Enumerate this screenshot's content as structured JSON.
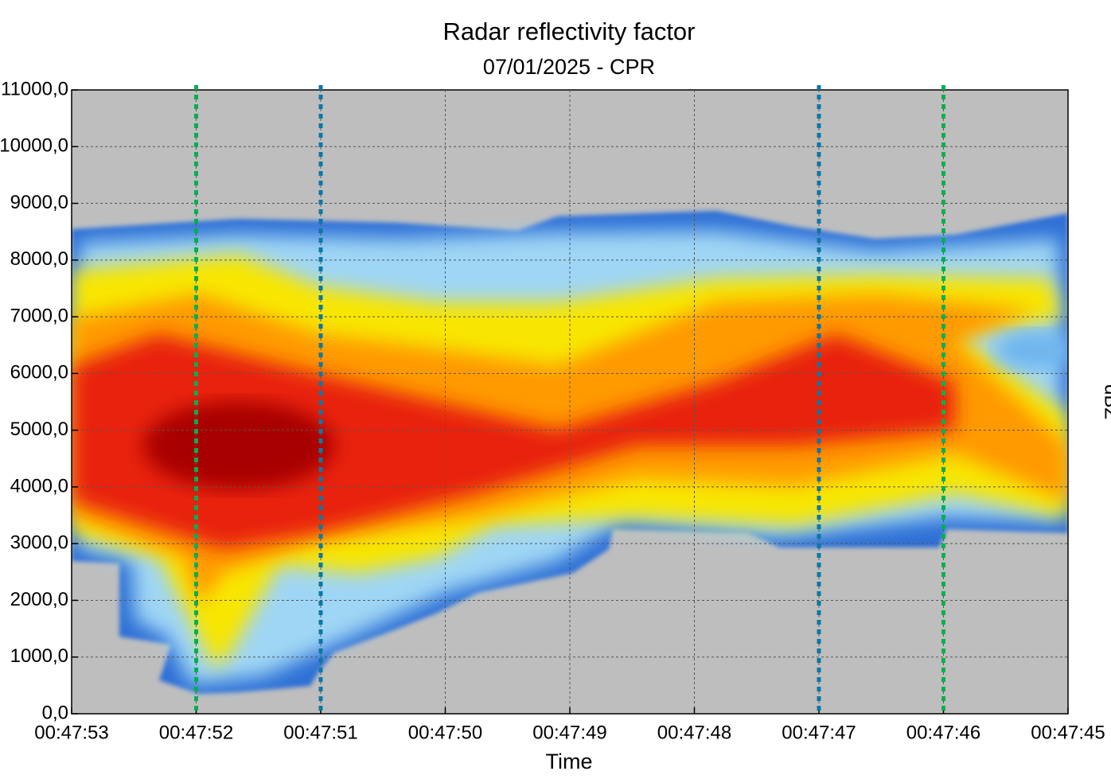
{
  "chart_data": {
    "type": "heatmap",
    "title": "Radar reflectivity factor",
    "subtitle": "07/01/2025 - CPR",
    "xlabel": "Time",
    "colorbar_label": "dBZ",
    "categories": [
      "00:47:53",
      "00:47:52",
      "00:47:51",
      "00:47:50",
      "00:47:49",
      "00:47:48",
      "00:47:47",
      "00:47:46",
      "00:47:45"
    ],
    "ylim": [
      0,
      11000
    ],
    "yticks": [
      {
        "value": 0,
        "label": "0,0"
      },
      {
        "value": 1000,
        "label": "1000,0"
      },
      {
        "value": 2000,
        "label": "2000,0"
      },
      {
        "value": 3000,
        "label": "3000,0"
      },
      {
        "value": 4000,
        "label": "4000,0"
      },
      {
        "value": 5000,
        "label": "5000,0"
      },
      {
        "value": 6000,
        "label": "6000,0"
      },
      {
        "value": 7000,
        "label": "7000,0"
      },
      {
        "value": 8000,
        "label": "8000,0"
      },
      {
        "value": 9000,
        "label": "9000,0"
      },
      {
        "value": 10000,
        "label": "10000,0"
      },
      {
        "value": 11000,
        "label": "11000,0"
      }
    ],
    "grid": true,
    "vlines": [
      {
        "category": 1,
        "color": "#00b050"
      },
      {
        "category": 2,
        "color": "#0a78a8"
      },
      {
        "category": 6,
        "color": "#0a78a8"
      },
      {
        "category": 7,
        "color": "#00b050"
      }
    ]
  }
}
